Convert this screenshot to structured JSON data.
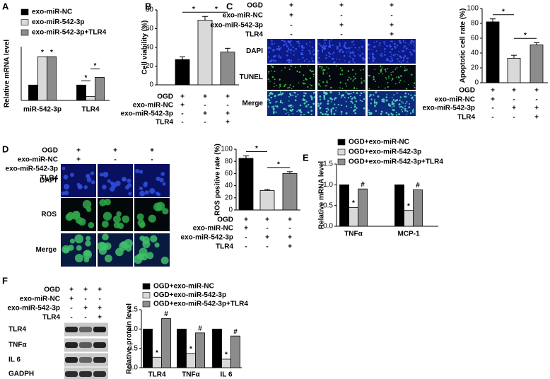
{
  "chart_data": [
    {
      "type": "bar",
      "panel": "A",
      "y_label": "Relative mRNA level",
      "categories": [
        "miR-542-3p",
        "TLR4"
      ],
      "series": [
        {
          "name": "exo-miR-NC",
          "color": "#000000",
          "values": [
            1,
            1
          ]
        },
        {
          "name": "exo-miR-542-3p",
          "color": "#d9d9d9",
          "values": [
            2.85,
            0.25
          ],
          "marks": [
            "*",
            null
          ]
        },
        {
          "name": "exo-miR-542-3p+TLR4",
          "color": "#8c8c8c",
          "values": [
            2.85,
            1.5
          ],
          "marks": [
            "*",
            null
          ]
        }
      ],
      "comparisons": [
        {
          "category": 1,
          "pair": [
            0,
            1
          ],
          "label": "*"
        },
        {
          "category": 1,
          "pair": [
            1,
            2
          ],
          "label": "*"
        }
      ],
      "ylim": [
        0,
        3.5
      ]
    },
    {
      "type": "bar",
      "panel": "B",
      "y_label": "Cell viability (%)",
      "values": [
        27,
        69,
        35
      ],
      "errors": [
        3,
        4,
        4
      ],
      "colors": [
        "#000000",
        "#d9d9d9",
        "#8c8c8c"
      ],
      "ylim": [
        0,
        80
      ],
      "yticks": [
        0,
        20,
        40,
        60,
        80
      ],
      "comparisons": [
        {
          "pair": [
            0,
            1
          ],
          "label": "*"
        },
        {
          "pair": [
            1,
            2
          ],
          "label": "*"
        }
      ],
      "conditions": [
        {
          "label": "OGD",
          "signs": [
            "+",
            "+",
            "+"
          ]
        },
        {
          "label": "exo-miR-NC",
          "signs": [
            "+",
            "-",
            "-"
          ]
        },
        {
          "label": "exo-miR-542-3p",
          "signs": [
            "-",
            "+",
            "+"
          ]
        },
        {
          "label": "TLR4",
          "signs": [
            "-",
            "-",
            "+"
          ]
        }
      ]
    },
    {
      "type": "bar",
      "panel": "C",
      "y_label": "Apoptotic cell rate (%)",
      "values": [
        82,
        33,
        51
      ],
      "errors": [
        4,
        4,
        3
      ],
      "colors": [
        "#000000",
        "#d9d9d9",
        "#8c8c8c"
      ],
      "ylim": [
        0,
        100
      ],
      "yticks": [
        0,
        20,
        40,
        60,
        80,
        100
      ],
      "comparisons": [
        {
          "pair": [
            0,
            1
          ],
          "label": "*"
        },
        {
          "pair": [
            1,
            2
          ],
          "label": "*"
        }
      ],
      "conditions": [
        {
          "label": "OGD",
          "signs": [
            "+",
            "+",
            "+"
          ]
        },
        {
          "label": "exo-miR-NC",
          "signs": [
            "+",
            "-",
            "-"
          ]
        },
        {
          "label": "exo-miR-542-3p",
          "signs": [
            "-",
            "+",
            "+"
          ]
        },
        {
          "label": "TLR4",
          "signs": [
            "-",
            "-",
            "+"
          ]
        }
      ],
      "images": [
        "DAPI",
        "TUNEL",
        "Merge"
      ]
    },
    {
      "type": "bar",
      "panel": "D",
      "y_label": "ROS positive rate (%)",
      "values": [
        85,
        32,
        60
      ],
      "errors": [
        4,
        2,
        3
      ],
      "colors": [
        "#000000",
        "#d9d9d9",
        "#8c8c8c"
      ],
      "ylim": [
        0,
        100
      ],
      "yticks": [
        0,
        20,
        40,
        60,
        80,
        100
      ],
      "comparisons": [
        {
          "pair": [
            0,
            1
          ],
          "label": "*"
        },
        {
          "pair": [
            1,
            2
          ],
          "label": "*"
        }
      ],
      "conditions": [
        {
          "label": "OGD",
          "signs": [
            "+",
            "+",
            "+"
          ]
        },
        {
          "label": "exo-miR-NC",
          "signs": [
            "+",
            "-",
            "-"
          ]
        },
        {
          "label": "exo-miR-542-3p",
          "signs": [
            "-",
            "+",
            "+"
          ]
        },
        {
          "label": "TLR4",
          "signs": [
            "-",
            "-",
            "+"
          ]
        }
      ],
      "images": [
        "DAPI",
        "ROS",
        "Merge"
      ]
    },
    {
      "type": "bar",
      "panel": "E",
      "y_label": "Relative mRNA level",
      "categories": [
        "TNFα",
        "MCP-1"
      ],
      "series": [
        {
          "name": "OGD+exo-miR-NC",
          "color": "#000000",
          "values": [
            1,
            1
          ]
        },
        {
          "name": "OGD+exo-miR-542-3p",
          "color": "#d9d9d9",
          "values": [
            0.45,
            0.38
          ],
          "marks": [
            "*",
            "*"
          ]
        },
        {
          "name": "OGD+exo-miR-542-3p+TLR4",
          "color": "#8c8c8c",
          "values": [
            0.9,
            0.88
          ],
          "marks": [
            "#",
            "#"
          ]
        }
      ],
      "ylim": [
        0,
        1.5
      ],
      "yticks": [
        {
          "value": 0,
          "label": "0.0"
        },
        {
          "value": 0.5,
          "label": "0.5"
        },
        {
          "value": 1,
          "label": "1.0"
        },
        {
          "value": 1.5,
          "label": "1.5"
        }
      ]
    },
    {
      "type": "bar",
      "panel": "F",
      "y_label": "Relative protein level",
      "categories": [
        "TLR4",
        "TNFα",
        "IL 6"
      ],
      "series": [
        {
          "name": "OGD+exo-miR-NC",
          "color": "#000000",
          "values": [
            1,
            1,
            1
          ]
        },
        {
          "name": "OGD+exo-miR-542-3p",
          "color": "#d9d9d9",
          "values": [
            0.27,
            0.37,
            0.22
          ],
          "marks": [
            "*",
            "*",
            "*"
          ]
        },
        {
          "name": "OGD+exo-miR-542-3p+TLR4",
          "color": "#8c8c8c",
          "values": [
            1.27,
            0.9,
            0.82
          ],
          "marks": [
            "#",
            "#",
            "#"
          ]
        }
      ],
      "ylim": [
        0,
        1.5
      ],
      "yticks": [
        {
          "value": 0,
          "label": "0.0"
        },
        {
          "value": 0.5,
          "label": "0.5"
        },
        {
          "value": 1,
          "label": "1.0"
        },
        {
          "value": 1.5,
          "label": "1.5"
        }
      ],
      "conditions": [
        {
          "label": "OGD",
          "signs": [
            "+",
            "+",
            "+"
          ]
        },
        {
          "label": "exo-miR-NC",
          "signs": [
            "+",
            "-",
            "-"
          ]
        },
        {
          "label": "exo-miR-542-3p",
          "signs": [
            "-",
            "+",
            "+"
          ]
        },
        {
          "label": "TLR4",
          "signs": [
            "-",
            "-",
            "+"
          ]
        }
      ],
      "blot": [
        "TLR4",
        "TNFα",
        "IL 6",
        "GADPH"
      ]
    }
  ]
}
